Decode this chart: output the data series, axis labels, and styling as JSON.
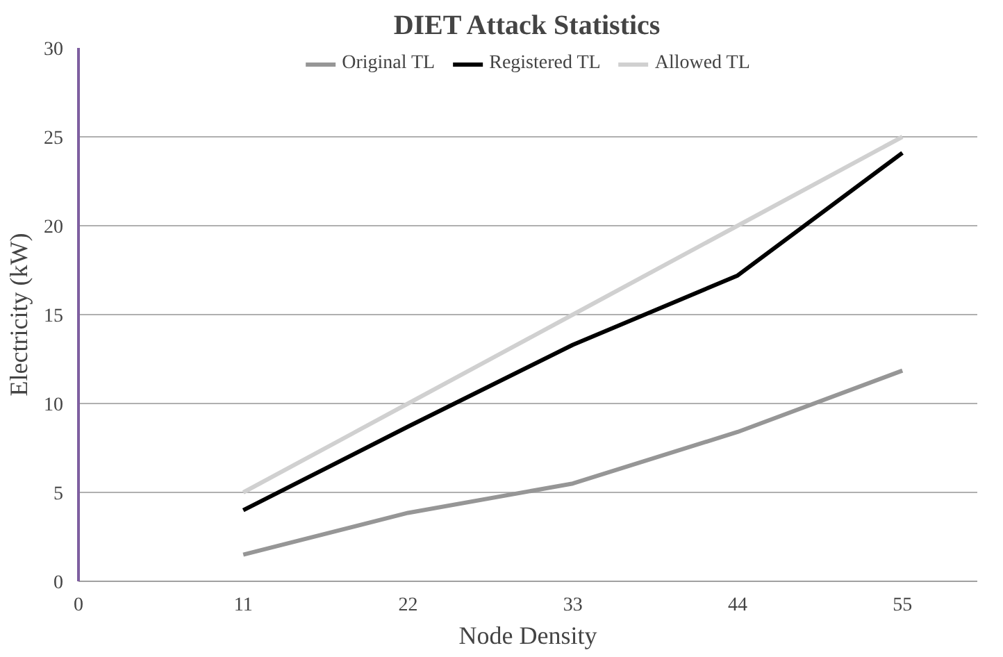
{
  "chart_data": {
    "type": "line",
    "title": "DIET Attack Statistics",
    "xlabel": "Node Density",
    "ylabel": "Electricity (kW)",
    "x": [
      11,
      22,
      33,
      44,
      55
    ],
    "series": [
      {
        "name": "Original TL",
        "color": "#969696",
        "values": [
          1.5,
          3.85,
          5.5,
          8.4,
          11.85
        ]
      },
      {
        "name": "Registered TL",
        "color": "#000000",
        "values": [
          4,
          8.7,
          13.3,
          17.2,
          24.1
        ]
      },
      {
        "name": "Allowed TL",
        "color": "#d0d0d0",
        "values": [
          5,
          10,
          15,
          20,
          25
        ]
      }
    ],
    "xlim": [
      0,
      60
    ],
    "xticks": [
      0,
      11,
      22,
      33,
      44,
      55
    ],
    "ylim": [
      0,
      30
    ],
    "yticks": [
      0,
      5,
      10,
      15,
      20,
      25,
      30
    ],
    "grid": "y",
    "legend": "top",
    "marker": "none",
    "line_style": "solid"
  }
}
